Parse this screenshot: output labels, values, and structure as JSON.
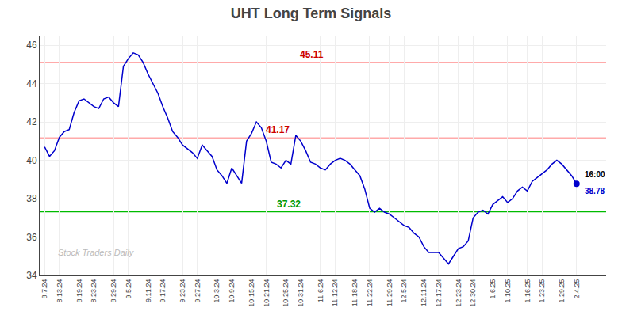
{
  "chart_data": {
    "type": "line",
    "title": "UHT Long Term Signals",
    "categories": [
      "8.7.24",
      null,
      null,
      "8.13.24",
      null,
      null,
      null,
      "8.19.24",
      null,
      null,
      "8.23.24",
      null,
      null,
      null,
      "8.29.24",
      null,
      null,
      "9.5.24",
      null,
      null,
      null,
      "9.11.24",
      null,
      null,
      "9.17.24",
      null,
      null,
      null,
      "9.23.24",
      null,
      null,
      "9.27.24",
      null,
      null,
      null,
      "10.3.24",
      null,
      null,
      "10.9.24",
      null,
      null,
      null,
      "10.15.24",
      null,
      null,
      "10.21.24",
      null,
      null,
      null,
      "10.25.24",
      null,
      null,
      "10.31.24",
      null,
      null,
      null,
      "11.6.24",
      null,
      null,
      "11.12.24",
      null,
      null,
      null,
      "11.18.24",
      null,
      null,
      "11.22.24",
      null,
      null,
      null,
      "11.29.24",
      null,
      null,
      "12.5.24",
      null,
      null,
      null,
      "12.11.24",
      null,
      null,
      "12.17.24",
      null,
      null,
      null,
      "12.23.24",
      null,
      null,
      "12.30.24",
      null,
      null,
      null,
      "1.6.25",
      null,
      null,
      "1.10.25",
      null,
      null,
      null,
      "1.16.25",
      null,
      null,
      "1.23.25",
      null,
      null,
      null,
      "1.29.25",
      null,
      null,
      "2.4.25"
    ],
    "values": [
      40.7,
      40.2,
      40.5,
      41.2,
      41.5,
      41.6,
      42.5,
      43.1,
      43.2,
      43.0,
      42.8,
      42.7,
      43.2,
      43.3,
      43.0,
      42.8,
      44.9,
      45.3,
      45.6,
      45.5,
      45.1,
      44.5,
      44.0,
      43.5,
      42.8,
      42.2,
      41.5,
      41.2,
      40.8,
      40.6,
      40.4,
      40.1,
      40.8,
      40.5,
      40.2,
      39.5,
      39.2,
      38.8,
      39.6,
      39.2,
      38.8,
      41.0,
      41.4,
      42.0,
      41.7,
      41.0,
      39.9,
      39.8,
      39.6,
      40.0,
      39.8,
      41.3,
      41.0,
      40.5,
      39.9,
      39.8,
      39.6,
      39.5,
      39.8,
      40.0,
      40.1,
      40.0,
      39.8,
      39.5,
      39.2,
      38.5,
      37.5,
      37.3,
      37.5,
      37.3,
      37.2,
      37.0,
      36.8,
      36.6,
      36.5,
      36.2,
      36.0,
      35.5,
      35.2,
      35.2,
      35.2,
      34.9,
      34.6,
      35.0,
      35.4,
      35.5,
      35.8,
      37.0,
      37.3,
      37.4,
      37.2,
      37.7,
      37.9,
      38.1,
      37.8,
      38.0,
      38.4,
      38.6,
      38.4,
      38.9,
      39.1,
      39.3,
      39.5,
      39.8,
      40.0,
      39.8,
      39.5,
      39.2,
      38.78
    ],
    "color": "#0000cc",
    "xlim": [
      -1,
      114
    ],
    "ylim": [
      34,
      46.5
    ],
    "yticks": [
      34,
      36,
      38,
      40,
      42,
      44,
      46
    ],
    "grid": true,
    "hlines": [
      {
        "value": 45.11,
        "color": "#ffaaaa",
        "label": "45.11",
        "label_color": "#cc0000"
      },
      {
        "value": 41.17,
        "color": "#ffaaaa",
        "label": "41.17",
        "label_color": "#cc0000"
      },
      {
        "value": 37.32,
        "color": "#00bb00",
        "label": "37.32",
        "label_color": "#009900"
      }
    ],
    "last_point": {
      "value": 38.78,
      "color": "#0000cc",
      "time_label": "16:00",
      "price_label": "38.78"
    },
    "watermark": {
      "text": "Stock Traders Daily",
      "color": "#bbbbbb"
    }
  }
}
